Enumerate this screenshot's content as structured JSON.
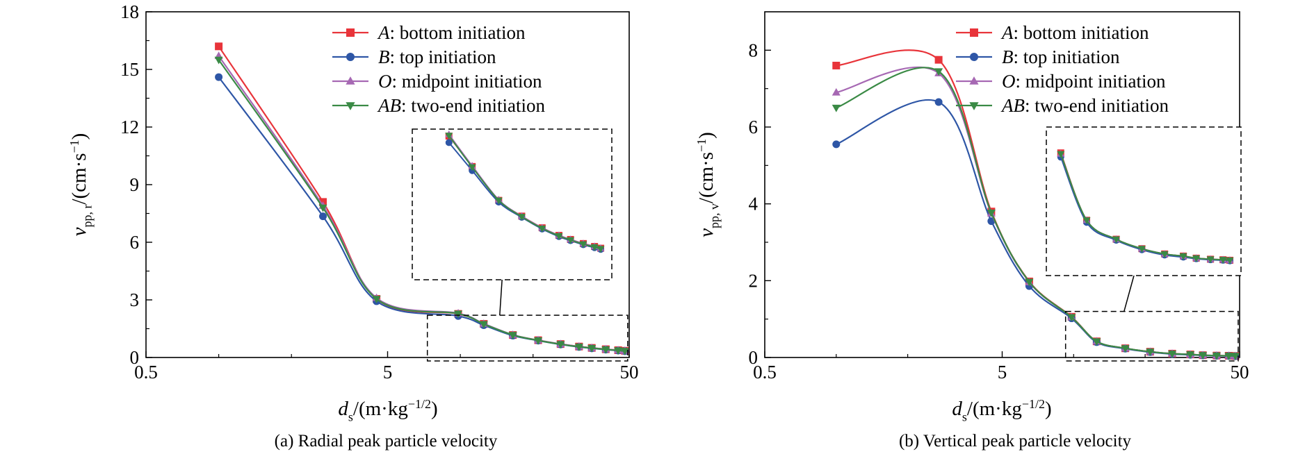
{
  "figure": {
    "charts": [
      {
        "caption": "(a) Radial peak particle velocity",
        "ylabel": {
          "sym": "v",
          "sub": "pp, r",
          "unit": "/(cm·s",
          "sup": "−1",
          "close": ")"
        },
        "xlabel": {
          "sym": "d",
          "sub": "s",
          "unit": "/(m·kg",
          "sup": "−1/2",
          "close": ")"
        },
        "xticks": [
          "0.5",
          "5",
          "50"
        ],
        "yticks": [
          "0",
          "3",
          "6",
          "9",
          "12",
          "15",
          "18"
        ]
      },
      {
        "caption": "(b) Vertical peak particle velocity",
        "ylabel": {
          "sym": "v",
          "sub": "pp, v",
          "unit": "/(cm·s",
          "sup": "−1",
          "close": ")"
        },
        "xlabel": {
          "sym": "d",
          "sub": "s",
          "unit": "/(m·kg",
          "sup": "−1/2",
          "close": ")"
        },
        "xticks": [
          "0.5",
          "5",
          "50"
        ],
        "yticks": [
          "0",
          "2",
          "4",
          "6",
          "8"
        ]
      }
    ],
    "legend": [
      {
        "key": "A",
        "text": ": bottom initiation"
      },
      {
        "key": "B",
        "text": ": top initiation"
      },
      {
        "key": "O",
        "text": ": midpoint initiation"
      },
      {
        "key": "AB",
        "text": ": two-end initiation"
      }
    ]
  },
  "chart_data": [
    {
      "type": "line",
      "title": "(a) Radial peak particle velocity",
      "xlabel": "ds/(m·kg−1/2)",
      "ylabel": "vpp,r/(cm·s−1)",
      "x_scale": "log",
      "xlim": [
        0.5,
        50
      ],
      "ylim": [
        0,
        18
      ],
      "legend_position": "top-right",
      "inset": "zoomed view of the dashed region x ≈ 7.5–48, y ≈ 0–2.2",
      "x": [
        1.0,
        2.7,
        4.5,
        6.5,
        9.8,
        12.5,
        16.5,
        21,
        26,
        31,
        35,
        40,
        45,
        48
      ],
      "series": [
        {
          "name": "A: bottom initiation",
          "color": "#e8343a",
          "marker": "square",
          "values": [
            16.2,
            8.1,
            3.05,
            null,
            2.27,
            1.75,
            1.17,
            0.9,
            0.7,
            0.57,
            0.5,
            0.43,
            0.38,
            0.35
          ]
        },
        {
          "name": "B: top initiation",
          "color": "#2e56a6",
          "marker": "circle",
          "values": [
            14.6,
            7.35,
            2.93,
            null,
            2.16,
            1.68,
            1.14,
            0.88,
            0.68,
            0.55,
            0.48,
            0.41,
            0.36,
            0.33
          ]
        },
        {
          "name": "O: midpoint initiation",
          "color": "#a668b3",
          "marker": "triangle-up",
          "values": [
            15.7,
            7.9,
            3.1,
            null,
            2.3,
            1.76,
            1.18,
            0.9,
            0.7,
            0.57,
            0.5,
            0.43,
            0.38,
            0.35
          ]
        },
        {
          "name": "AB: two-end initiation",
          "color": "#3a8a45",
          "marker": "triangle-down",
          "values": [
            15.5,
            7.8,
            3.05,
            null,
            2.28,
            1.74,
            1.17,
            0.89,
            0.69,
            0.56,
            0.49,
            0.42,
            0.37,
            0.34
          ]
        }
      ]
    },
    {
      "type": "line",
      "title": "(b) Vertical peak particle velocity",
      "xlabel": "ds/(m·kg−1/2)",
      "ylabel": "vpp,v/(cm·s−1)",
      "x_scale": "log",
      "xlim": [
        0.5,
        50
      ],
      "ylim": [
        0,
        9
      ],
      "legend_position": "top-right",
      "inset": "zoomed view of the dashed region x ≈ 9.5–48, y ≈ 0–1.2",
      "x": [
        1.0,
        2.7,
        4.5,
        6.5,
        9.8,
        12.5,
        16.5,
        21,
        26,
        31,
        35,
        40,
        45,
        48
      ],
      "series": [
        {
          "name": "A: bottom initiation",
          "color": "#e8343a",
          "marker": "square",
          "values": [
            7.6,
            7.75,
            3.8,
            1.98,
            1.06,
            0.42,
            0.24,
            0.15,
            0.1,
            0.08,
            0.06,
            0.05,
            0.045,
            0.04
          ]
        },
        {
          "name": "B: top initiation",
          "color": "#2e56a6",
          "marker": "circle",
          "values": [
            5.55,
            6.65,
            3.55,
            1.86,
            1.02,
            0.4,
            0.23,
            0.14,
            0.09,
            0.07,
            0.055,
            0.045,
            0.04,
            0.035
          ]
        },
        {
          "name": "O: midpoint initiation",
          "color": "#a668b3",
          "marker": "triangle-up",
          "values": [
            6.9,
            7.4,
            3.75,
            1.96,
            1.05,
            0.42,
            0.24,
            0.15,
            0.1,
            0.08,
            0.06,
            0.05,
            0.045,
            0.04
          ]
        },
        {
          "name": "AB: two-end initiation",
          "color": "#3a8a45",
          "marker": "triangle-down",
          "values": [
            6.5,
            7.45,
            3.77,
            1.97,
            1.05,
            0.42,
            0.24,
            0.15,
            0.1,
            0.08,
            0.06,
            0.05,
            0.045,
            0.04
          ]
        }
      ]
    }
  ]
}
